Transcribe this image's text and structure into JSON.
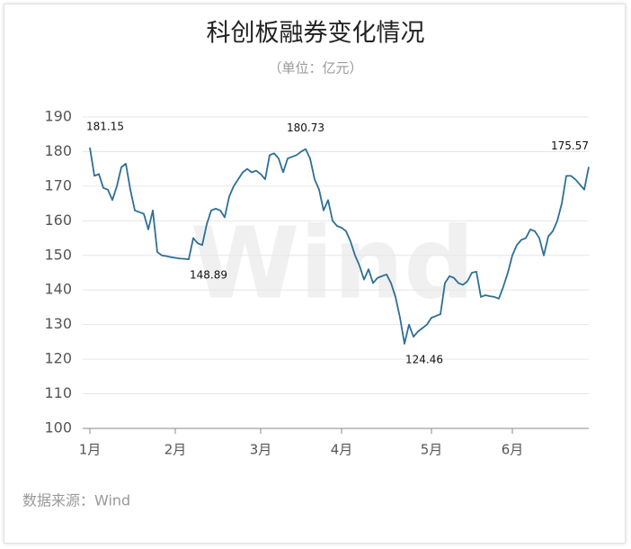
{
  "chart_data": {
    "type": "line",
    "title": "科创板融券变化情况",
    "subtitle": "（单位：亿元）",
    "watermark": "Wind",
    "source": "数据来源：Wind",
    "color": "#2e6f96",
    "grid": true,
    "ylim": [
      100,
      190
    ],
    "yticks": [
      100,
      110,
      120,
      130,
      140,
      150,
      160,
      170,
      180,
      190
    ],
    "categories": [
      "1月",
      null,
      null,
      null,
      null,
      null,
      null,
      null,
      null,
      null,
      null,
      null,
      null,
      null,
      null,
      null,
      null,
      null,
      null,
      "2月",
      null,
      null,
      null,
      null,
      null,
      null,
      null,
      null,
      null,
      null,
      null,
      null,
      null,
      null,
      null,
      null,
      null,
      null,
      "3月",
      null,
      null,
      null,
      null,
      null,
      null,
      null,
      null,
      null,
      null,
      null,
      null,
      null,
      null,
      null,
      null,
      null,
      "4月",
      null,
      null,
      null,
      null,
      null,
      null,
      null,
      null,
      null,
      null,
      null,
      null,
      null,
      null,
      null,
      null,
      null,
      null,
      null,
      "5月",
      null,
      null,
      null,
      null,
      null,
      null,
      null,
      null,
      null,
      null,
      null,
      null,
      null,
      null,
      null,
      null,
      null,
      "6月",
      null,
      null,
      null,
      null,
      null,
      null,
      null,
      null,
      null,
      null,
      null,
      null,
      null,
      null,
      null,
      null,
      null
    ],
    "values": [
      181.15,
      173,
      173.5,
      169.5,
      169,
      166,
      170,
      175.5,
      176.5,
      169,
      163,
      162.5,
      162,
      157.5,
      163,
      151,
      150,
      149.8,
      149.5,
      149.3,
      149.1,
      149,
      148.89,
      155,
      153.5,
      153,
      159,
      163,
      163.5,
      163,
      161,
      167,
      170,
      172,
      174,
      175,
      174,
      174.5,
      173.5,
      172,
      179,
      179.5,
      178,
      174,
      178,
      178.5,
      179,
      180,
      180.73,
      178,
      172,
      169,
      163,
      166,
      160,
      158.5,
      158,
      157,
      154,
      150,
      147,
      143,
      146,
      142,
      143.5,
      144,
      144.5,
      142,
      138,
      132,
      124.46,
      130,
      126.5,
      128,
      129,
      130,
      132,
      132.5,
      133,
      142,
      144,
      143.5,
      142,
      141.5,
      142.5,
      145,
      145.3,
      138,
      138.5,
      138.2,
      138,
      137.5,
      141,
      145,
      150,
      153,
      154.5,
      155,
      157.5,
      157,
      155,
      150,
      155.5,
      157,
      160,
      165,
      173,
      173,
      172,
      170.5,
      169,
      175.57
    ],
    "value_labels": [
      "181.15",
      null,
      null,
      null,
      null,
      null,
      null,
      null,
      null,
      null,
      null,
      null,
      null,
      null,
      null,
      null,
      null,
      null,
      null,
      null,
      null,
      null,
      "148.89",
      null,
      null,
      null,
      null,
      null,
      null,
      null,
      null,
      null,
      null,
      null,
      null,
      null,
      null,
      null,
      null,
      null,
      null,
      null,
      null,
      null,
      null,
      null,
      null,
      null,
      "180.73",
      null,
      null,
      null,
      null,
      null,
      null,
      null,
      null,
      null,
      null,
      null,
      null,
      null,
      null,
      null,
      null,
      null,
      null,
      null,
      null,
      null,
      "124.46",
      null,
      null,
      null,
      null,
      null,
      null,
      null,
      null,
      null,
      null,
      null,
      null,
      null,
      null,
      null,
      null,
      null,
      null,
      null,
      null,
      null,
      null,
      null,
      null,
      null,
      null,
      null,
      null,
      null,
      null,
      null,
      null,
      null,
      null,
      null,
      null,
      null,
      null,
      null,
      null,
      "175.57"
    ]
  }
}
